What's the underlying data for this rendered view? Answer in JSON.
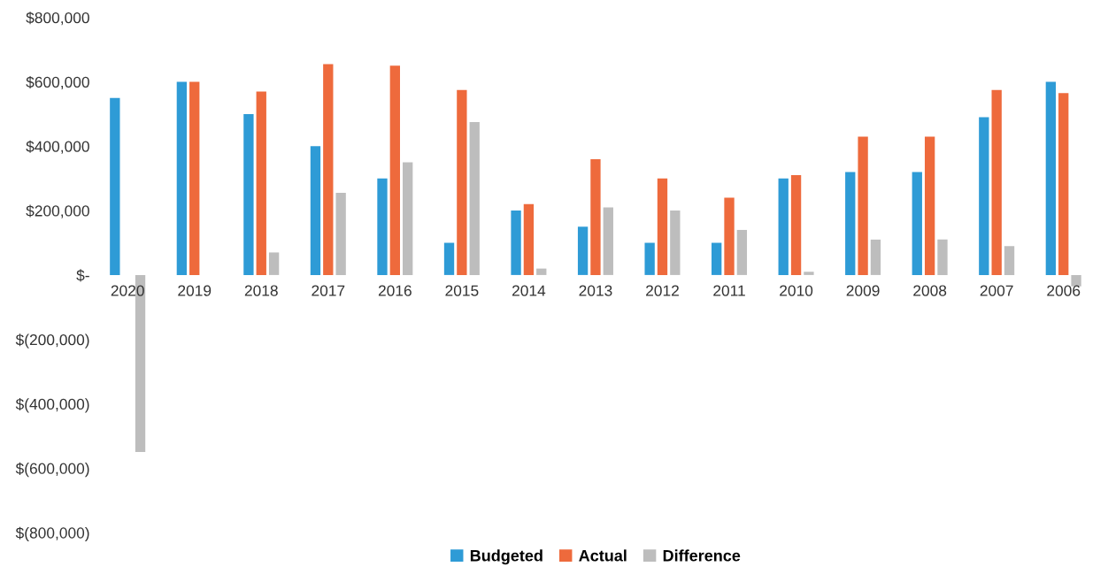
{
  "chart_data": {
    "type": "bar",
    "categories": [
      "2020",
      "2019",
      "2018",
      "2017",
      "2016",
      "2015",
      "2014",
      "2013",
      "2012",
      "2011",
      "2010",
      "2009",
      "2008",
      "2007",
      "2006"
    ],
    "series": [
      {
        "name": "Budgeted",
        "color": "#2e9bd6",
        "values": [
          550000,
          600000,
          500000,
          400000,
          300000,
          100000,
          200000,
          150000,
          100000,
          100000,
          300000,
          320000,
          320000,
          490000,
          600000
        ]
      },
      {
        "name": "Actual",
        "color": "#ee6a3c",
        "values": [
          0,
          600000,
          570000,
          655000,
          650000,
          575000,
          220000,
          360000,
          300000,
          240000,
          310000,
          430000,
          430000,
          575000,
          565000
        ]
      },
      {
        "name": "Difference",
        "color": "#bdbdbd",
        "values": [
          -550000,
          0,
          70000,
          255000,
          350000,
          475000,
          20000,
          210000,
          200000,
          140000,
          10000,
          110000,
          110000,
          90000,
          -35000
        ]
      }
    ],
    "ylim": [
      -800000,
      800000
    ],
    "yticks": [
      {
        "value": -800000,
        "label": "$(800,000)"
      },
      {
        "value": -600000,
        "label": "$(600,000)"
      },
      {
        "value": -400000,
        "label": "$(400,000)"
      },
      {
        "value": -200000,
        "label": "$(200,000)"
      },
      {
        "value": 0,
        "label": "$-"
      },
      {
        "value": 200000,
        "label": "$200,000"
      },
      {
        "value": 400000,
        "label": "$400,000"
      },
      {
        "value": 600000,
        "label": "$600,000"
      },
      {
        "value": 800000,
        "label": "$800,000"
      }
    ],
    "grid": false,
    "legend": "bottom"
  }
}
